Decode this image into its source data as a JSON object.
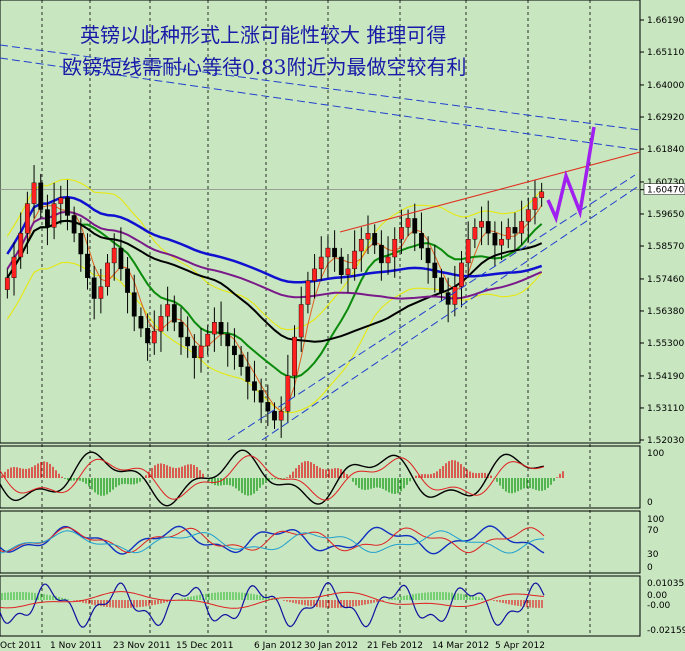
{
  "chart_data": {
    "type": "candlestick",
    "title_lines": [
      "英镑以此种形式上涨可能性较大 推理可得",
      "欧镑短线需耐心等待0.83附近为最做空较有利"
    ],
    "price_axis": {
      "ticks": [
        "1.66190",
        "1.65110",
        "1.64000",
        "1.62920",
        "1.61840",
        "1.60730",
        "1.60470",
        "1.59650",
        "1.58570",
        "1.57460",
        "1.56380",
        "1.55300",
        "1.54190",
        "1.53110",
        "1.52030"
      ],
      "current_price": "1.60470",
      "ylim": [
        1.5203,
        1.6619
      ]
    },
    "date_axis": {
      "ticks": [
        "Oct 2011",
        "1 Nov 2011",
        "23 Nov 2011",
        "15 Dec 2011",
        "6 Jan 2012",
        "30 Jan 2012",
        "21 Feb 2012",
        "14 Mar 2012",
        "5 Apr 2012"
      ]
    },
    "macd_axis": {
      "ticks": [
        "100",
        "0"
      ]
    },
    "rsi_axis": {
      "ticks": [
        "100",
        "70",
        "30",
        "0"
      ]
    },
    "osc_axis": {
      "ticks": [
        "0.010357",
        "0.00",
        "-0.00",
        "-0.02159"
      ]
    },
    "candles_close": [
      1.575,
      1.582,
      1.59,
      1.6,
      1.607,
      1.598,
      1.592,
      1.6,
      1.602,
      1.596,
      1.59,
      1.583,
      1.575,
      1.568,
      1.572,
      1.58,
      1.585,
      1.578,
      1.57,
      1.562,
      1.558,
      1.553,
      1.557,
      1.562,
      1.566,
      1.56,
      1.555,
      1.552,
      1.548,
      1.552,
      1.556,
      1.56,
      1.556,
      1.552,
      1.549,
      1.545,
      1.54,
      1.537,
      1.533,
      1.53,
      1.527,
      1.53,
      1.542,
      1.555,
      1.566,
      1.574,
      1.578,
      1.582,
      1.585,
      1.582,
      1.576,
      1.578,
      1.584,
      1.588,
      1.59,
      1.586,
      1.58,
      1.582,
      1.588,
      1.592,
      1.595,
      1.59,
      1.585,
      1.58,
      1.575,
      1.57,
      1.566,
      1.572,
      1.58,
      1.588,
      1.592,
      1.594,
      1.59,
      1.586,
      1.588,
      1.592,
      1.59,
      1.594,
      1.598,
      1.602,
      1.604
    ],
    "projection_line_color": "#a020f0",
    "colors": {
      "bull": "#ff2020",
      "bear": "#000000",
      "ma_long": "#1010d0",
      "ma_mid": "#000000",
      "ma_short": "#0a8a0a",
      "ma_purple": "#7a1a8a",
      "bands": "#e8e800",
      "trend": "#e03020",
      "channel": "#2040d0"
    }
  }
}
